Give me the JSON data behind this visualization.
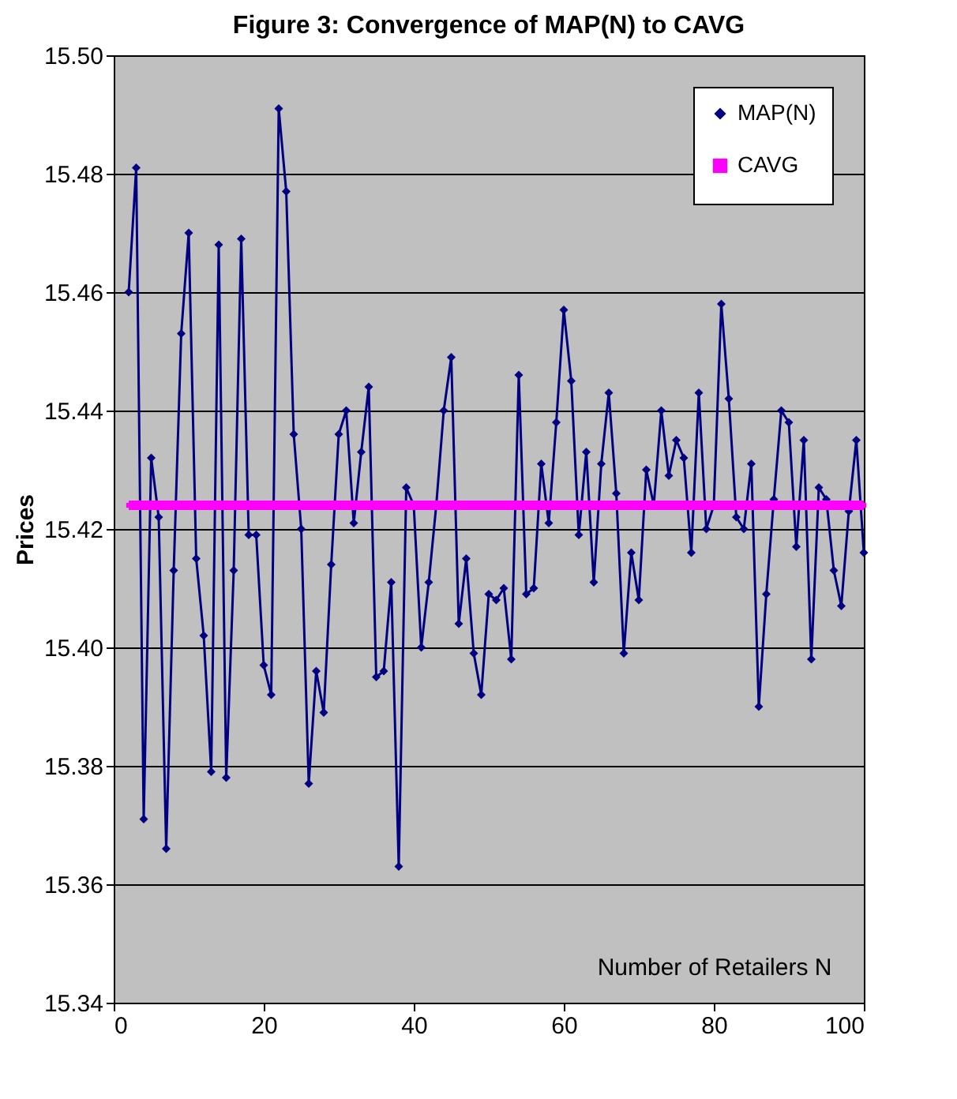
{
  "chart_data": {
    "type": "line",
    "title": "Figure 3: Convergence of MAP(N) to CAVG",
    "xlabel": "Number of Retailers N",
    "ylabel": "Prices",
    "xlim": [
      0,
      100
    ],
    "xticks": [
      0,
      20,
      40,
      60,
      80,
      100
    ],
    "ylim": [
      15.34,
      15.5
    ],
    "yticks": [
      15.34,
      15.36,
      15.38,
      {
        "value": 15.4,
        "label": "15.40"
      },
      15.42,
      15.44,
      15.46,
      15.48,
      {
        "value": 15.5,
        "label": "15.50"
      }
    ],
    "grid": "y",
    "legend": "top right",
    "series": [
      {
        "name": "MAP(N)",
        "color": "#000080",
        "marker": "diamond",
        "x": [
          2,
          3,
          4,
          5,
          6,
          7,
          8,
          9,
          10,
          11,
          12,
          13,
          14,
          15,
          16,
          17,
          18,
          19,
          20,
          21,
          22,
          23,
          24,
          25,
          26,
          27,
          28,
          29,
          30,
          31,
          32,
          33,
          34,
          35,
          36,
          37,
          38,
          39,
          40,
          41,
          42,
          43,
          44,
          45,
          46,
          47,
          48,
          49,
          50,
          51,
          52,
          53,
          54,
          55,
          56,
          57,
          58,
          59,
          60,
          61,
          62,
          63,
          64,
          65,
          66,
          67,
          68,
          69,
          70,
          71,
          72,
          73,
          74,
          75,
          76,
          77,
          78,
          79,
          80,
          81,
          82,
          83,
          84,
          85,
          86,
          87,
          88,
          89,
          90,
          91,
          92,
          93,
          94,
          95,
          96,
          97,
          98,
          99,
          100
        ],
        "values": [
          15.46,
          15.481,
          15.371,
          15.432,
          15.422,
          15.366,
          15.413,
          15.453,
          15.47,
          15.415,
          15.402,
          15.379,
          15.468,
          15.378,
          15.413,
          15.469,
          15.419,
          15.419,
          15.397,
          15.392,
          15.491,
          15.477,
          15.436,
          15.42,
          15.377,
          15.396,
          15.389,
          15.414,
          15.436,
          15.44,
          15.421,
          15.433,
          15.444,
          15.395,
          15.396,
          15.411,
          15.363,
          15.427,
          15.424,
          15.4,
          15.411,
          15.424,
          15.44,
          15.449,
          15.404,
          15.415,
          15.399,
          15.392,
          15.409,
          15.408,
          15.41,
          15.398,
          15.446,
          15.409,
          15.41,
          15.431,
          15.421,
          15.438,
          15.457,
          15.445,
          15.419,
          15.433,
          15.411,
          15.431,
          15.443,
          15.426,
          15.399,
          15.416,
          15.408,
          15.43,
          15.424,
          15.44,
          15.429,
          15.435,
          15.432,
          15.416,
          15.443,
          15.42,
          15.424,
          15.458,
          15.442,
          15.422,
          15.42,
          15.431,
          15.39,
          15.409,
          15.425,
          15.44,
          15.438,
          15.417,
          15.435,
          15.398,
          15.427,
          15.425,
          15.413,
          15.407,
          15.423,
          15.435,
          15.416
        ]
      },
      {
        "name": "CAVG",
        "color": "#ff00ff",
        "marker": "square",
        "x": [
          2,
          3,
          4,
          5,
          6,
          7,
          8,
          9,
          10,
          11,
          12,
          13,
          14,
          15,
          16,
          17,
          18,
          19,
          20,
          21,
          22,
          23,
          24,
          25,
          26,
          27,
          28,
          29,
          30,
          31,
          32,
          33,
          34,
          35,
          36,
          37,
          38,
          39,
          40,
          41,
          42,
          43,
          44,
          45,
          46,
          47,
          48,
          49,
          50,
          51,
          52,
          53,
          54,
          55,
          56,
          57,
          58,
          59,
          60,
          61,
          62,
          63,
          64,
          65,
          66,
          67,
          68,
          69,
          70,
          71,
          72,
          73,
          74,
          75,
          76,
          77,
          78,
          79,
          80,
          81,
          82,
          83,
          84,
          85,
          86,
          87,
          88,
          89,
          90,
          91,
          92,
          93,
          94,
          95,
          96,
          97,
          98,
          99,
          100
        ],
        "values": [
          15.424,
          15.424,
          15.424,
          15.424,
          15.424,
          15.424,
          15.424,
          15.424,
          15.424,
          15.424,
          15.424,
          15.424,
          15.424,
          15.424,
          15.424,
          15.424,
          15.424,
          15.424,
          15.424,
          15.424,
          15.424,
          15.424,
          15.424,
          15.424,
          15.424,
          15.424,
          15.424,
          15.424,
          15.424,
          15.424,
          15.424,
          15.424,
          15.424,
          15.424,
          15.424,
          15.424,
          15.424,
          15.424,
          15.424,
          15.424,
          15.424,
          15.424,
          15.424,
          15.424,
          15.424,
          15.424,
          15.424,
          15.424,
          15.424,
          15.424,
          15.424,
          15.424,
          15.424,
          15.424,
          15.424,
          15.424,
          15.424,
          15.424,
          15.424,
          15.424,
          15.424,
          15.424,
          15.424,
          15.424,
          15.424,
          15.424,
          15.424,
          15.424,
          15.424,
          15.424,
          15.424,
          15.424,
          15.424,
          15.424,
          15.424,
          15.424,
          15.424,
          15.424,
          15.424,
          15.424,
          15.424,
          15.424,
          15.424,
          15.424,
          15.424,
          15.424,
          15.424,
          15.424,
          15.424,
          15.424,
          15.424,
          15.424,
          15.424,
          15.424,
          15.424,
          15.424,
          15.424,
          15.424,
          15.424
        ]
      }
    ]
  }
}
